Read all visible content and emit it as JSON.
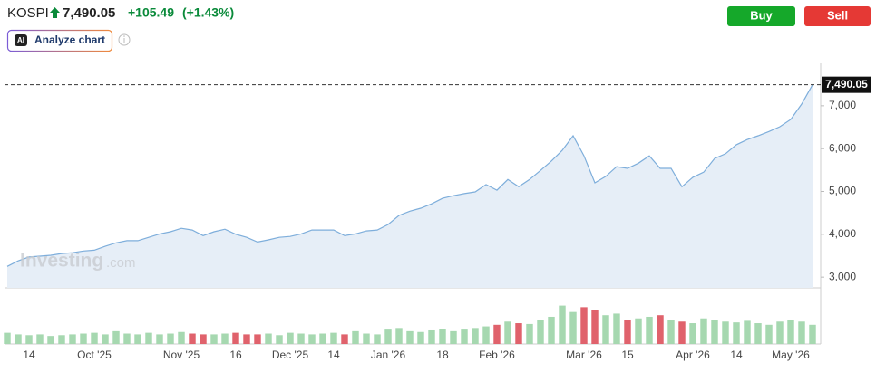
{
  "header": {
    "symbol": "KOSPI",
    "price": "7,490.05",
    "change": "+105.49",
    "change_pct": "(+1.43%)"
  },
  "buttons": {
    "buy": "Buy",
    "sell": "Sell",
    "ai_badge": "AI",
    "analyze": "Analyze chart"
  },
  "watermark": {
    "brand": "Investing",
    "suffix": ".com"
  },
  "chart_data": {
    "type": "line",
    "categories": [
      null,
      null,
      "14",
      null,
      null,
      null,
      null,
      null,
      "Oct '25",
      null,
      null,
      null,
      null,
      null,
      null,
      null,
      "Nov '25",
      null,
      null,
      null,
      null,
      "16",
      null,
      null,
      null,
      null,
      "Dec '25",
      null,
      null,
      null,
      "14",
      null,
      null,
      null,
      null,
      "Jan '26",
      null,
      null,
      null,
      null,
      "18",
      null,
      null,
      null,
      null,
      "Feb '26",
      null,
      null,
      null,
      null,
      null,
      null,
      null,
      "Mar '26",
      null,
      null,
      null,
      "15",
      null,
      null,
      null,
      null,
      null,
      "Apr '26",
      null,
      null,
      null,
      "14",
      null,
      null,
      null,
      null,
      "May '26",
      null,
      null
    ],
    "values": [
      3250,
      3380,
      3470,
      3490,
      3510,
      3550,
      3570,
      3610,
      3630,
      3720,
      3800,
      3850,
      3850,
      3930,
      4010,
      4060,
      4140,
      4100,
      3970,
      4060,
      4120,
      4000,
      3930,
      3820,
      3870,
      3930,
      3950,
      4010,
      4100,
      4100,
      4100,
      3970,
      4010,
      4080,
      4100,
      4230,
      4440,
      4540,
      4610,
      4710,
      4840,
      4900,
      4950,
      4990,
      5160,
      5030,
      5280,
      5110,
      5280,
      5490,
      5710,
      5960,
      6300,
      5830,
      5200,
      5350,
      5580,
      5540,
      5660,
      5830,
      5540,
      5540,
      5110,
      5330,
      5450,
      5770,
      5880,
      6090,
      6210,
      6300,
      6400,
      6510,
      6680,
      7040,
      7490.05
    ],
    "last_value_label": "7,490.05",
    "ylim": [
      2750,
      7990
    ],
    "yticks": [
      {
        "value": 3000,
        "label": "3,000"
      },
      {
        "value": 4000,
        "label": "4,000"
      },
      {
        "value": 5000,
        "label": "5,000"
      },
      {
        "value": 6000,
        "label": "6,000"
      },
      {
        "value": 7000,
        "label": "7,000"
      }
    ],
    "line_color": "#7eaedb",
    "fill_color": "#e6eef7",
    "last_price_line": true,
    "volume_values": [
      14,
      12,
      11,
      12,
      10,
      11,
      12,
      13,
      14,
      12,
      16,
      13,
      12,
      14,
      12,
      13,
      15,
      13,
      12,
      12,
      13,
      14,
      12,
      12,
      13,
      11,
      14,
      13,
      12,
      13,
      14,
      12,
      16,
      13,
      12,
      18,
      20,
      16,
      15,
      17,
      19,
      16,
      18,
      20,
      22,
      24,
      28,
      26,
      25,
      30,
      34,
      48,
      40,
      46,
      42,
      36,
      38,
      30,
      32,
      34,
      36,
      30,
      28,
      26,
      32,
      30,
      28,
      27,
      29,
      26,
      24,
      28,
      30,
      28,
      24
    ],
    "volume_ylim": [
      0,
      60
    ],
    "up_color": "#a6d8b0",
    "down_color": "#e0626c"
  }
}
